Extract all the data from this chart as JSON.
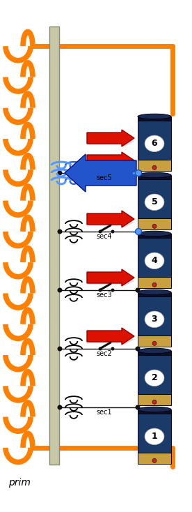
{
  "bg_color": "#ffffff",
  "orange": "#FF8000",
  "red_arrow": "#DD1100",
  "blue_arrow": "#2255CC",
  "blue_coil": "#3366DD",
  "light_blue_line": "#5599FF",
  "gray_bar": "#C8C8A8",
  "black": "#111111",
  "bat_body": "#1A3A6A",
  "bat_tan": "#C8A040",
  "bat_dark_top": "#0A1020",
  "bat_terminal_red": "#CC2222",
  "cell_labels": [
    "1",
    "2",
    "3",
    "4",
    "5",
    "6"
  ],
  "sec_labels": [
    "sec1",
    "sec2",
    "sec3",
    "sec4",
    "sec5"
  ],
  "prim_label": "prim",
  "figw": 2.76,
  "figh": 7.34,
  "dpi": 100
}
